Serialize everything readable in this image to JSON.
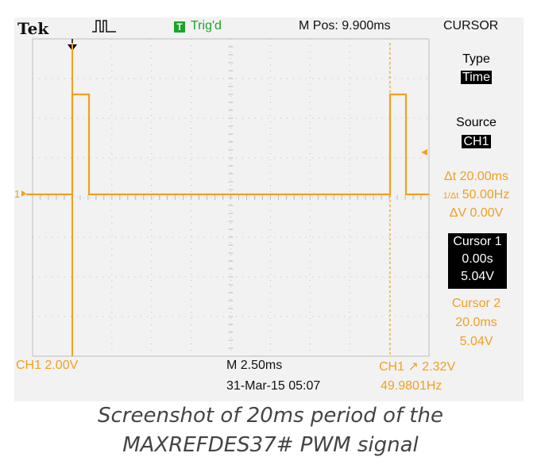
{
  "header": {
    "brand": "Tek",
    "trigger_box": "T",
    "trigger_status": "Trig'd",
    "mpos": "M Pos: 9.900ms",
    "menu_title": "CURSOR"
  },
  "side_menu": {
    "type_label": "Type",
    "type_value": "Time",
    "source_label": "Source",
    "source_value": "CH1",
    "delta_t": "Δt 20.00ms",
    "inv_delta_t": "50.00Hz",
    "delta_v": "ΔV 0.00V",
    "cursor1": {
      "title": "Cursor 1",
      "time": "0.00s",
      "volt": "5.04V"
    },
    "cursor2": {
      "title": "Cursor 2",
      "time": "20.0ms",
      "volt": "5.04V"
    }
  },
  "bottom": {
    "ch1_scale": "CH1  2.00V",
    "timebase": "M 2.50ms",
    "trigger": "CH1 ↗ 2.32V",
    "date": "31-Mar-15 05:07",
    "freq": "49.9801Hz"
  },
  "caption": {
    "line1": "Screenshot of 20ms period of the",
    "line2": "MAXREFDES37# PWM signal"
  },
  "colors": {
    "trace": "#f0a020",
    "trigger_green": "#1aa52a",
    "screen_bg": "#f2f2f2",
    "grid": "#bdbdbd"
  },
  "ch1_marker": "1"
}
